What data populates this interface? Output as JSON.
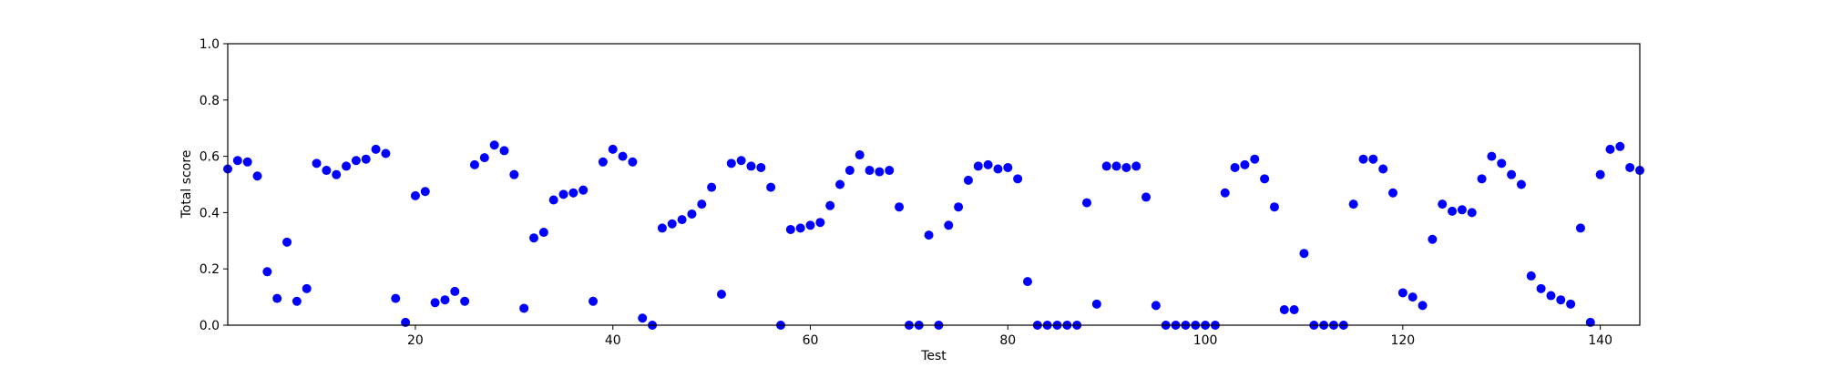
{
  "chart_data": {
    "type": "scatter",
    "title": "",
    "xlabel": "Test",
    "ylabel": "Total score",
    "xlim": [
      1,
      144
    ],
    "ylim": [
      0.0,
      1.0
    ],
    "x_ticks": [
      20,
      40,
      60,
      80,
      100,
      120,
      140
    ],
    "y_ticks": [
      0.0,
      0.2,
      0.4,
      0.6,
      0.8,
      1.0
    ],
    "grid": false,
    "marker_color": "#0000ff",
    "series": [
      {
        "x": [
          1,
          2,
          3,
          4,
          5,
          6,
          7,
          8,
          9,
          10,
          11,
          12,
          13,
          14,
          15,
          16,
          17,
          18,
          19,
          20,
          21,
          22,
          23,
          24,
          25,
          26,
          27,
          28,
          29,
          30,
          31,
          32,
          33,
          34,
          35,
          36,
          37,
          38,
          39,
          40,
          41,
          42,
          43,
          44,
          45,
          46,
          47,
          48,
          49,
          50,
          51,
          52,
          53,
          54,
          55,
          56,
          57,
          58,
          59,
          60,
          61,
          62,
          63,
          64,
          65,
          66,
          67,
          68,
          69,
          70,
          71,
          72,
          73,
          74,
          75,
          76,
          77,
          78,
          79,
          80,
          81,
          82,
          83,
          84,
          85,
          86,
          87,
          88,
          89,
          90,
          91,
          92,
          93,
          94,
          95,
          96,
          97,
          98,
          99,
          100,
          101,
          102,
          103,
          104,
          105,
          106,
          107,
          108,
          109,
          110,
          111,
          112,
          113,
          114,
          115,
          116,
          117,
          118,
          119,
          120,
          121,
          122,
          123,
          124,
          125,
          126,
          127,
          128,
          129,
          130,
          131,
          132,
          133,
          134,
          135,
          136,
          137,
          138,
          139,
          140,
          141,
          142,
          143,
          144
        ],
        "y": [
          0.555,
          0.585,
          0.58,
          0.53,
          0.19,
          0.095,
          0.295,
          0.085,
          0.13,
          0.575,
          0.55,
          0.535,
          0.565,
          0.585,
          0.59,
          0.625,
          0.61,
          0.095,
          0.01,
          0.46,
          0.475,
          0.08,
          0.09,
          0.12,
          0.085,
          0.57,
          0.595,
          0.64,
          0.62,
          0.535,
          0.06,
          0.31,
          0.33,
          0.445,
          0.465,
          0.47,
          0.48,
          0.085,
          0.58,
          0.625,
          0.6,
          0.58,
          0.025,
          0.0,
          0.345,
          0.36,
          0.375,
          0.395,
          0.43,
          0.49,
          0.11,
          0.575,
          0.585,
          0.565,
          0.56,
          0.49,
          0.0,
          0.34,
          0.345,
          0.355,
          0.365,
          0.425,
          0.5,
          0.55,
          0.605,
          0.55,
          0.545,
          0.55,
          0.42,
          0.0,
          0.0,
          0.32,
          0.0,
          0.355,
          0.42,
          0.515,
          0.565,
          0.57,
          0.555,
          0.56,
          0.52,
          0.155,
          0.0,
          0.0,
          0.0,
          0.0,
          0.0,
          0.435,
          0.075,
          0.565,
          0.565,
          0.56,
          0.565,
          0.455,
          0.07,
          0.0,
          0.0,
          0.0,
          0.0,
          0.0,
          0.0,
          0.47,
          0.56,
          0.57,
          0.59,
          0.52,
          0.42,
          0.055,
          0.055,
          0.255,
          0.0,
          0.0,
          0.0,
          0.0,
          0.43,
          0.59,
          0.59,
          0.555,
          0.47,
          0.115,
          0.1,
          0.07,
          0.305,
          0.43,
          0.405,
          0.41,
          0.4,
          0.52,
          0.6,
          0.575,
          0.535,
          0.5,
          0.175,
          0.13,
          0.105,
          0.09,
          0.075,
          0.345,
          0.01,
          0.535,
          0.625,
          0.635,
          0.56,
          0.55
        ]
      }
    ]
  }
}
